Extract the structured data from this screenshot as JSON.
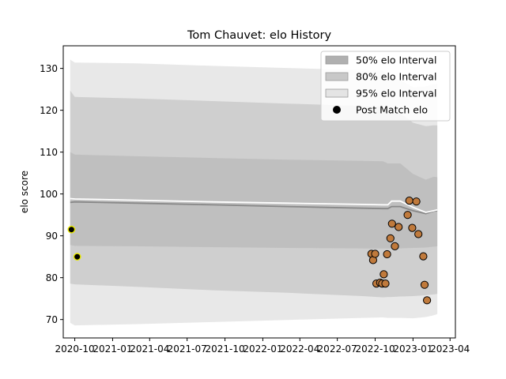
{
  "chart_data": {
    "type": "line",
    "title": "Tom Chauvet: elo History",
    "xlabel": "",
    "ylabel": "elo score",
    "xlim": [
      "2020-09-03",
      "2023-04-14"
    ],
    "ylim": [
      65.6,
      135.4
    ],
    "yticks": [
      70,
      80,
      90,
      100,
      110,
      120,
      130
    ],
    "xticks": [
      {
        "date": "2020-10-01",
        "label": "2020-10"
      },
      {
        "date": "2021-01-01",
        "label": "2021-01"
      },
      {
        "date": "2021-04-01",
        "label": "2021-04"
      },
      {
        "date": "2021-07-01",
        "label": "2021-07"
      },
      {
        "date": "2021-10-01",
        "label": "2021-10"
      },
      {
        "date": "2022-01-01",
        "label": "2022-01"
      },
      {
        "date": "2022-04-01",
        "label": "2022-04"
      },
      {
        "date": "2022-07-01",
        "label": "2022-07"
      },
      {
        "date": "2022-10-01",
        "label": "2022-10"
      },
      {
        "date": "2023-01-01",
        "label": "2023-01"
      },
      {
        "date": "2023-04-01",
        "label": "2023-04"
      }
    ],
    "legend": {
      "position": "top-right",
      "entries": [
        {
          "label": "50% elo Interval",
          "color": "#b0b0b0",
          "kind": "patch"
        },
        {
          "label": "80% elo Interval",
          "color": "#c8c8c8",
          "kind": "patch"
        },
        {
          "label": "95% elo Interval",
          "color": "#e4e4e4",
          "kind": "patch"
        },
        {
          "label": "Post Match elo",
          "color": "#000000",
          "kind": "marker"
        }
      ]
    },
    "colors": {
      "band95": "#e4e4e4",
      "band80": "#cacaca",
      "band50": "#bcbcbc",
      "mean_line": "#888888",
      "median_line": "#ffffff",
      "marker_fill": "#c07a3c",
      "marker_first_fill": "#000000",
      "marker_first_edge": "#e8e800"
    },
    "series": [
      {
        "name": "95% elo Interval",
        "dates": [
          "2020-09-20",
          "2020-10-01",
          "2021-03-01",
          "2021-09-01",
          "2022-03-01",
          "2022-09-01",
          "2022-10-20",
          "2022-11-01",
          "2022-11-10",
          "2022-12-01",
          "2023-01-01",
          "2023-02-01",
          "2023-02-20",
          "2023-03-01"
        ],
        "lower": [
          69.2,
          68.6,
          68.9,
          69.4,
          69.9,
          70.4,
          70.5,
          70.4,
          70.4,
          70.4,
          70.3,
          70.6,
          71.0,
          71.3
        ],
        "upper": [
          132.1,
          131.4,
          131.2,
          130.6,
          130.1,
          129.6,
          129.5,
          128.0,
          128.0,
          127.2,
          125.5,
          125.7,
          126.2,
          126.3
        ]
      },
      {
        "name": "80% elo Interval",
        "dates": [
          "2020-09-20",
          "2020-10-01",
          "2021-03-01",
          "2021-09-01",
          "2022-03-01",
          "2022-09-01",
          "2022-10-20",
          "2022-11-01",
          "2022-11-10",
          "2022-12-01",
          "2023-01-01",
          "2023-02-01",
          "2023-02-20",
          "2023-03-01"
        ],
        "lower": [
          78.6,
          78.4,
          77.8,
          77.0,
          76.4,
          75.6,
          75.3,
          75.4,
          75.4,
          75.5,
          75.6,
          75.8,
          76.0,
          76.1
        ],
        "upper": [
          124.7,
          123.2,
          122.8,
          122.2,
          121.6,
          121.0,
          120.8,
          119.7,
          119.7,
          119.3,
          117.0,
          116.2,
          116.4,
          116.4
        ]
      },
      {
        "name": "50% elo Interval",
        "dates": [
          "2020-09-20",
          "2020-10-01",
          "2021-03-01",
          "2021-09-01",
          "2022-03-01",
          "2022-09-01",
          "2022-10-20",
          "2022-11-01",
          "2022-11-10",
          "2022-12-01",
          "2023-01-01",
          "2023-02-01",
          "2023-02-20",
          "2023-03-01"
        ],
        "lower": [
          87.8,
          87.6,
          87.5,
          87.3,
          87.1,
          87.0,
          87.0,
          87.0,
          87.0,
          87.0,
          87.1,
          87.2,
          87.4,
          87.5
        ],
        "upper": [
          110.0,
          109.4,
          109.0,
          108.6,
          108.2,
          107.9,
          107.8,
          107.3,
          107.3,
          107.3,
          104.8,
          103.4,
          104.1,
          104.0
        ]
      },
      {
        "name": "mean",
        "dates": [
          "2020-09-20",
          "2020-10-01",
          "2021-03-01",
          "2021-09-01",
          "2022-03-01",
          "2022-09-01",
          "2022-10-20",
          "2022-11-01",
          "2022-11-10",
          "2022-12-01",
          "2023-01-01",
          "2023-02-01",
          "2023-02-20",
          "2023-03-01"
        ],
        "values": [
          98.0,
          98.1,
          97.8,
          97.4,
          97.0,
          96.6,
          96.5,
          96.5,
          97.0,
          97.0,
          96.0,
          95.3,
          95.9,
          96.0
        ]
      },
      {
        "name": "median",
        "dates": [
          "2020-09-20",
          "2020-10-01",
          "2021-03-01",
          "2021-09-01",
          "2022-03-01",
          "2022-09-01",
          "2022-10-20",
          "2022-11-01",
          "2022-11-10",
          "2022-12-01",
          "2023-01-01",
          "2023-02-01",
          "2023-02-20",
          "2023-03-01"
        ],
        "values": [
          98.9,
          98.8,
          98.5,
          98.1,
          97.8,
          97.5,
          97.4,
          97.4,
          98.3,
          98.3,
          96.8,
          95.6,
          96.0,
          96.2
        ]
      },
      {
        "name": "Post Match elo",
        "points": [
          {
            "date": "2020-09-23",
            "value": 91.5,
            "first": true
          },
          {
            "date": "2020-10-07",
            "value": 85.0,
            "first": true
          },
          {
            "date": "2022-09-22",
            "value": 85.7
          },
          {
            "date": "2022-09-26",
            "value": 84.2
          },
          {
            "date": "2022-10-01",
            "value": 85.7
          },
          {
            "date": "2022-10-04",
            "value": 78.6
          },
          {
            "date": "2022-10-13",
            "value": 78.8
          },
          {
            "date": "2022-10-18",
            "value": 78.6
          },
          {
            "date": "2022-10-22",
            "value": 80.8
          },
          {
            "date": "2022-10-26",
            "value": 78.6
          },
          {
            "date": "2022-10-30",
            "value": 85.6
          },
          {
            "date": "2022-11-07",
            "value": 89.4
          },
          {
            "date": "2022-11-11",
            "value": 92.9
          },
          {
            "date": "2022-11-18",
            "value": 87.5
          },
          {
            "date": "2022-11-27",
            "value": 92.1
          },
          {
            "date": "2022-12-19",
            "value": 95.0
          },
          {
            "date": "2022-12-23",
            "value": 98.4
          },
          {
            "date": "2022-12-30",
            "value": 91.9
          },
          {
            "date": "2023-01-09",
            "value": 98.2
          },
          {
            "date": "2023-01-14",
            "value": 90.4
          },
          {
            "date": "2023-01-26",
            "value": 85.1
          },
          {
            "date": "2023-01-29",
            "value": 78.3
          },
          {
            "date": "2023-02-04",
            "value": 74.6
          }
        ]
      }
    ]
  }
}
